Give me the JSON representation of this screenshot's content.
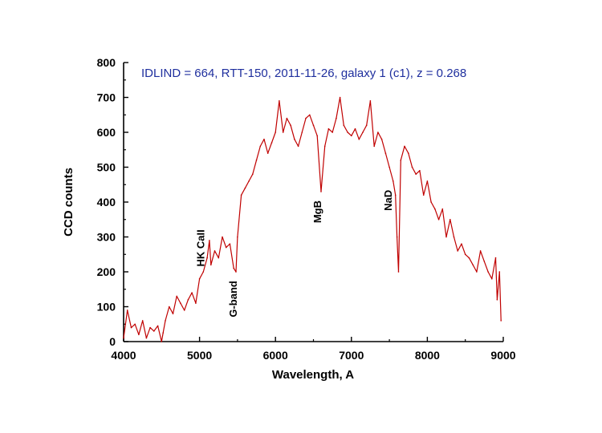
{
  "chart_data": {
    "type": "line",
    "title": "IDLIND = 664, RTT-150, 2011-11-26, galaxy 1 (c1),  z = 0.268",
    "xlabel": "Wavelength, A",
    "ylabel": "CCD counts",
    "xlim": [
      4000,
      9000
    ],
    "ylim": [
      0,
      800
    ],
    "xticks": [
      "4000",
      "5000",
      "6000",
      "7000",
      "8000",
      "9000"
    ],
    "yticks": [
      "0",
      "100",
      "200",
      "300",
      "400",
      "500",
      "600",
      "700",
      "800"
    ],
    "grid": false,
    "colors": {
      "series": "#c00000",
      "title": "#1f2f9e",
      "axis": "#000000"
    },
    "annotations": [
      {
        "text": "HK CaII",
        "x": 5060,
        "y": 215
      },
      {
        "text": "G-band",
        "x": 5490,
        "y": 70
      },
      {
        "text": "MgB",
        "x": 6600,
        "y": 340
      },
      {
        "text": "NaD",
        "x": 7530,
        "y": 375
      }
    ],
    "series": [
      {
        "x": [
          4000,
          4050,
          4100,
          4150,
          4200,
          4250,
          4300,
          4350,
          4400,
          4450,
          4500,
          4520,
          4550,
          4600,
          4650,
          4700,
          4750,
          4800,
          4850,
          4900,
          4950,
          5000,
          5050,
          5100,
          5130,
          5150,
          5200,
          5250,
          5300,
          5350,
          5400,
          5450,
          5480,
          5500,
          5550,
          5600,
          5650,
          5700,
          5750,
          5800,
          5850,
          5900,
          5950,
          6000,
          6050,
          6100,
          6150,
          6200,
          6250,
          6300,
          6350,
          6400,
          6450,
          6500,
          6550,
          6600,
          6650,
          6700,
          6750,
          6800,
          6850,
          6900,
          6950,
          7000,
          7050,
          7100,
          7150,
          7200,
          7250,
          7300,
          7350,
          7400,
          7450,
          7500,
          7550,
          7580,
          7600,
          7620,
          7650,
          7700,
          7750,
          7800,
          7850,
          7900,
          7950,
          8000,
          8050,
          8100,
          8150,
          8200,
          8250,
          8300,
          8350,
          8400,
          8450,
          8500,
          8550,
          8600,
          8650,
          8700,
          8750,
          8800,
          8850,
          8900,
          8920,
          8950,
          8970
        ],
        "y": [
          10,
          90,
          40,
          50,
          20,
          60,
          10,
          40,
          30,
          45,
          0,
          25,
          60,
          100,
          80,
          130,
          110,
          90,
          120,
          140,
          110,
          180,
          200,
          240,
          290,
          220,
          260,
          240,
          300,
          270,
          280,
          210,
          200,
          300,
          420,
          440,
          460,
          480,
          520,
          560,
          580,
          540,
          570,
          600,
          690,
          600,
          640,
          620,
          580,
          560,
          600,
          640,
          650,
          620,
          590,
          430,
          560,
          610,
          600,
          640,
          700,
          620,
          600,
          590,
          610,
          580,
          600,
          620,
          690,
          560,
          600,
          580,
          540,
          500,
          460,
          420,
          300,
          200,
          520,
          560,
          540,
          500,
          480,
          490,
          420,
          460,
          400,
          380,
          350,
          380,
          300,
          350,
          300,
          260,
          280,
          250,
          240,
          220,
          200,
          260,
          230,
          200,
          180,
          240,
          120,
          200,
          60
        ]
      }
    ]
  }
}
